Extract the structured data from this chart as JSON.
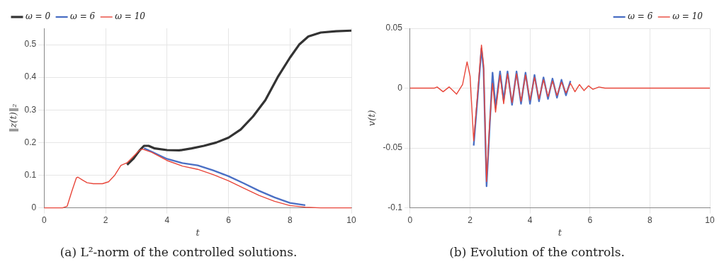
{
  "chart_data": [
    {
      "type": "line",
      "title": "(a) L²-norm of the controlled solutions.",
      "xlabel": "t",
      "ylabel": "‖z(t)‖₂",
      "xlim": [
        0,
        10
      ],
      "xticks": [
        0,
        2,
        4,
        6,
        8,
        10
      ],
      "ylim": [
        0,
        0.55
      ],
      "yticks": [
        0,
        0.1,
        0.2,
        0.3,
        0.4,
        0.5
      ],
      "grid": true,
      "legend": "top left",
      "marker": "none",
      "line_style": "solid",
      "series": [
        {
          "name": "ω = 0",
          "color": "#333333",
          "x": [
            2.7,
            2.9,
            3.1,
            3.25,
            3.4,
            3.6,
            4.0,
            4.4,
            4.8,
            5.2,
            5.6,
            6,
            6.4,
            6.8,
            7.2,
            7.6,
            8,
            8.3,
            8.6,
            9,
            9.5,
            10
          ],
          "values": [
            0.132,
            0.15,
            0.175,
            0.19,
            0.19,
            0.182,
            0.177,
            0.176,
            0.182,
            0.19,
            0.2,
            0.215,
            0.24,
            0.28,
            0.33,
            0.4,
            0.46,
            0.5,
            0.525,
            0.537,
            0.541,
            0.543
          ]
        },
        {
          "name": "ω = 6",
          "color": "#4a6fc4",
          "x": [
            3.25,
            3.5,
            4.0,
            4.5,
            5.0,
            5.5,
            6,
            6.5,
            7,
            7.5,
            8,
            8.5
          ],
          "values": [
            0.183,
            0.172,
            0.15,
            0.137,
            0.13,
            0.115,
            0.097,
            0.075,
            0.052,
            0.032,
            0.015,
            0.008
          ]
        },
        {
          "name": "ω = 10",
          "color": "#e8463a",
          "x": [
            0,
            0.6,
            0.75,
            0.9,
            1.05,
            1.1,
            1.25,
            1.4,
            1.6,
            1.9,
            2.1,
            2.3,
            2.5,
            2.7,
            2.9,
            3.1,
            3.2,
            3.5,
            4.0,
            4.5,
            5.0,
            5.5,
            6,
            6.5,
            7,
            7.5,
            8,
            8.5,
            9,
            10
          ],
          "values": [
            0,
            0,
            0.005,
            0.05,
            0.092,
            0.094,
            0.085,
            0.077,
            0.074,
            0.074,
            0.08,
            0.1,
            0.13,
            0.138,
            0.157,
            0.176,
            0.18,
            0.17,
            0.145,
            0.128,
            0.118,
            0.102,
            0.083,
            0.06,
            0.038,
            0.02,
            0.007,
            0.002,
            0,
            0
          ]
        }
      ]
    },
    {
      "type": "line",
      "title": "(b) Evolution of the controls.",
      "xlabel": "t",
      "ylabel": "v(t)",
      "xlim": [
        0,
        10
      ],
      "xticks": [
        0,
        2,
        4,
        6,
        8,
        10
      ],
      "ylim": [
        -0.1,
        0.05
      ],
      "yticks": [
        -0.1,
        -0.05,
        0,
        0.05
      ],
      "grid": true,
      "legend": "top right",
      "marker": "none",
      "line_style": "solid",
      "series": [
        {
          "name": "ω = 6",
          "color": "#4a6fc4",
          "x": [
            2.12,
            2.25,
            2.38,
            2.45,
            2.55,
            2.65,
            2.75,
            2.85,
            3.0,
            3.12,
            3.25,
            3.4,
            3.55,
            3.7,
            3.85,
            4.0,
            4.15,
            4.3,
            4.45,
            4.6,
            4.75,
            4.9,
            5.05,
            5.2,
            5.35
          ],
          "values": [
            -0.048,
            -0.008,
            0.033,
            0.016,
            -0.082,
            -0.034,
            0.013,
            -0.016,
            0.014,
            -0.01,
            0.014,
            -0.014,
            0.014,
            -0.013,
            0.013,
            -0.013,
            0.011,
            -0.011,
            0.009,
            -0.009,
            0.008,
            -0.008,
            0.007,
            -0.006,
            0.006
          ]
        },
        {
          "name": "ω = 10",
          "color": "#e8463a",
          "x": [
            0,
            0.8,
            0.9,
            1.1,
            1.3,
            1.55,
            1.75,
            1.9,
            2.0,
            2.12,
            2.25,
            2.38,
            2.45,
            2.55,
            2.65,
            2.75,
            2.85,
            3.0,
            3.12,
            3.25,
            3.4,
            3.55,
            3.7,
            3.85,
            4.0,
            4.15,
            4.3,
            4.45,
            4.6,
            4.75,
            4.9,
            5.05,
            5.2,
            5.35,
            5.5,
            5.65,
            5.8,
            5.95,
            6.1,
            6.3,
            6.5,
            10
          ],
          "values": [
            0,
            0,
            0.001,
            -0.003,
            0.001,
            -0.005,
            0.003,
            0.022,
            0.01,
            -0.044,
            -0.005,
            0.036,
            0.02,
            -0.078,
            -0.03,
            0.004,
            -0.02,
            0.011,
            -0.013,
            0.012,
            -0.012,
            0.012,
            -0.011,
            0.011,
            -0.01,
            0.009,
            -0.009,
            0.007,
            -0.007,
            0.006,
            -0.006,
            0.005,
            -0.004,
            0.004,
            -0.003,
            0.003,
            -0.002,
            0.002,
            -0.001,
            0.001,
            0,
            0
          ]
        }
      ]
    }
  ]
}
